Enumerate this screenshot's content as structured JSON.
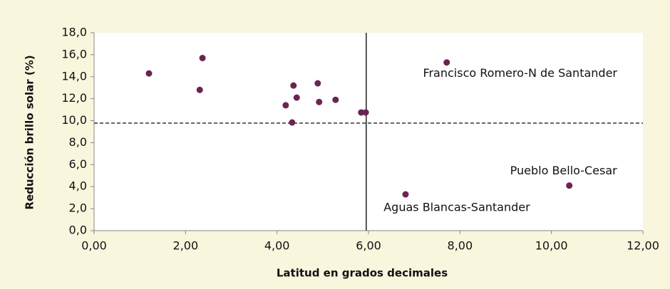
{
  "chart_data": {
    "type": "scatter",
    "x_label": "Latitud en grados decimales",
    "y_label": "Reducción  brillo solar (%)",
    "color": "#6b2452",
    "x": [
      1.2,
      2.37,
      2.31,
      4.36,
      4.89,
      4.43,
      4.19,
      4.92,
      5.28,
      5.84,
      5.94,
      4.33,
      7.71,
      6.81,
      10.39
    ],
    "values": [
      14.3,
      15.7,
      12.8,
      13.2,
      13.4,
      12.1,
      11.4,
      11.7,
      11.9,
      10.75,
      10.75,
      9.84,
      15.3,
      3.3,
      4.1
    ],
    "labels": [
      null,
      null,
      null,
      null,
      null,
      null,
      null,
      null,
      null,
      null,
      null,
      null,
      "Francisco Romero-N de Santander",
      "Aguas Blancas-Santander",
      "Pueblo Bello-Cesar"
    ],
    "reference_x": 5.95,
    "reference_y": 9.78,
    "xlim": [
      0,
      12
    ],
    "ylim": [
      0,
      18
    ],
    "xticks": [
      {
        "value": 0,
        "label": "0,00"
      },
      {
        "value": 2,
        "label": "2,00"
      },
      {
        "value": 4,
        "label": "4,00"
      },
      {
        "value": 6,
        "label": "6,00"
      },
      {
        "value": 8,
        "label": "8,00"
      },
      {
        "value": 10,
        "label": "10,00"
      },
      {
        "value": 12,
        "label": "12,00"
      }
    ],
    "yticks": [
      {
        "value": 0,
        "label": "0,0"
      },
      {
        "value": 2,
        "label": "2,0"
      },
      {
        "value": 4,
        "label": "4,0"
      },
      {
        "value": 6,
        "label": "6,0"
      },
      {
        "value": 8,
        "label": "8,0"
      },
      {
        "value": 10,
        "label": "10,0"
      },
      {
        "value": 12,
        "label": "12,0"
      },
      {
        "value": 14,
        "label": "14,0"
      },
      {
        "value": 16,
        "label": "16,0"
      },
      {
        "value": 18,
        "label": "18,0"
      }
    ]
  }
}
